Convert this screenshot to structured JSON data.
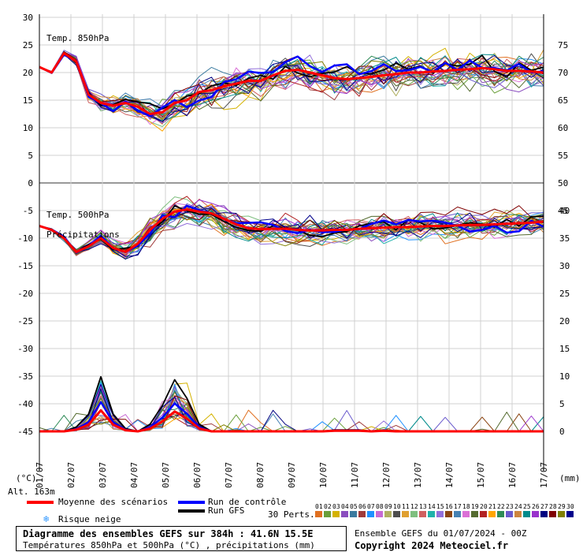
{
  "chart_data": {
    "type": "line",
    "title": "Diagramme des ensembles GEFS sur 384h : 41.6N 15.5E",
    "subtitle": "Températures 850hPa et 500hPa (°C) , précipitations (mm)",
    "left_axis": {
      "unit_label": "(°C)",
      "ticks": [
        30,
        25,
        20,
        15,
        10,
        5,
        0,
        -5,
        -10,
        -15,
        -20,
        -25,
        -30,
        -35,
        -40,
        -45
      ]
    },
    "right_axis_top": {
      "ticks": [
        75,
        70,
        65,
        60,
        55,
        50,
        45
      ]
    },
    "right_axis_bottom": {
      "unit_label": "(mm)",
      "ticks": [
        40,
        35,
        30,
        25,
        20,
        15,
        10,
        5,
        0
      ]
    },
    "x_ticks": [
      "01/07",
      "02/07",
      "03/07",
      "04/07",
      "05/07",
      "06/07",
      "07/07",
      "08/07",
      "09/07",
      "10/07",
      "11/07",
      "12/07",
      "13/07",
      "14/07",
      "15/07",
      "16/07",
      "17/07"
    ],
    "panel_labels": {
      "t850": "Temp. 850hPa",
      "t500": "Temp. 500hPa",
      "precip": "Précipitations"
    },
    "altitude": "Alt. 163m",
    "mean_850": [
      21,
      20,
      23.5,
      22,
      16,
      14.5,
      14,
      14.5,
      13.8,
      12.5,
      12.8,
      14.5,
      15,
      16.5,
      16.8,
      17.5,
      18,
      18.5,
      18.5,
      19.5,
      20.3,
      20.5,
      20,
      19.5,
      19,
      18.8,
      19,
      19.2,
      19.5,
      19.7,
      20,
      20,
      20.2,
      20.3,
      20.5,
      20.6,
      20.8,
      20.6,
      20.3,
      20.3,
      20.2,
      20
    ],
    "mean_500": [
      -7.8,
      -8.5,
      -10,
      -12.5,
      -11.5,
      -10,
      -11.8,
      -12.5,
      -11,
      -8.5,
      -6.5,
      -5.2,
      -4.8,
      -5.2,
      -5.5,
      -6.5,
      -7.5,
      -8.2,
      -8.4,
      -8.3,
      -8.3,
      -8.5,
      -8.6,
      -8.6,
      -8.5,
      -8.5,
      -8.3,
      -8.2,
      -8.1,
      -8,
      -8,
      -7.9,
      -7.8,
      -7.8,
      -7.7,
      -7.6,
      -7.6,
      -7.5,
      -7.4,
      -7.3,
      -7.2,
      -7
    ],
    "mean_precip": [
      0,
      0,
      0,
      0.3,
      1.2,
      3.8,
      1.2,
      0.2,
      0,
      0.5,
      1.8,
      3.6,
      2.3,
      0.5,
      0,
      0,
      0,
      0,
      0,
      0,
      0,
      0,
      0,
      0,
      0.1,
      0.1,
      0.1,
      0,
      0.1,
      0,
      0,
      0,
      0,
      0,
      0,
      0,
      0,
      0,
      0,
      0,
      0,
      0
    ],
    "x_start_label": "01/07",
    "legend": {
      "mean": "Moyenne des scénarios",
      "control": "Run de contrôle",
      "gfs": "Run GFS",
      "snow": "Risque neige",
      "perts": "30 Perts."
    },
    "pert_numbers": [
      "01",
      "02",
      "03",
      "04",
      "05",
      "06",
      "07",
      "08",
      "09",
      "10",
      "11",
      "12",
      "13",
      "14",
      "15",
      "16",
      "17",
      "18",
      "19",
      "20",
      "21",
      "22",
      "23",
      "24",
      "25",
      "26",
      "27",
      "28",
      "29",
      "30"
    ],
    "pert_colors": [
      "#e07020",
      "#6a9f3a",
      "#d4b200",
      "#8a4dbf",
      "#3a7a9f",
      "#9f3a3a",
      "#1e90ff",
      "#c86ad4",
      "#b0b060",
      "#4d4d4d",
      "#e0a030",
      "#7fbf7f",
      "#d06060",
      "#20b2aa",
      "#9370db",
      "#8b4513",
      "#4682b4",
      "#da70d6",
      "#556b2f",
      "#b22222",
      "#ffa500",
      "#2e8b57",
      "#6a5acd",
      "#cd853f",
      "#008b8b",
      "#9932cc",
      "#000080",
      "#800000",
      "#808000",
      "#00008b"
    ],
    "colors": {
      "mean": "#ff0000",
      "control": "#0000ff",
      "gfs": "#000000"
    },
    "ensemble_info": "Ensemble GEFS du 01/07/2024 - 00Z",
    "copyright": "Copyright 2024 Meteociel.fr"
  }
}
